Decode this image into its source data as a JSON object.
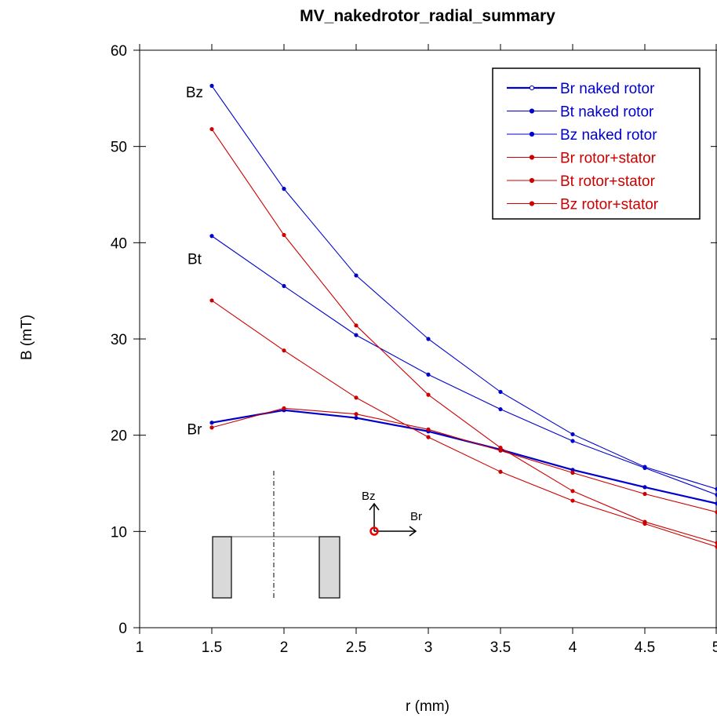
{
  "chart_data": {
    "type": "line",
    "title": "MV_nakedrotor_radial_summary",
    "xlabel": "r (mm)",
    "ylabel": "B (mT)",
    "xlim": [
      1,
      5
    ],
    "ylim": [
      0,
      60
    ],
    "xticks": [
      "1",
      "1.5",
      "2",
      "2.5",
      "3",
      "3.5",
      "4",
      "4.5",
      "5"
    ],
    "yticks": [
      "0",
      "10",
      "20",
      "30",
      "40",
      "50",
      "60"
    ],
    "grid": false,
    "legend_position": "top-right",
    "x": [
      1.5,
      2,
      2.5,
      3,
      3.5,
      4,
      4.5,
      5
    ],
    "series": [
      {
        "name": "Br naked rotor",
        "color": "#0000cc",
        "bold": true,
        "values": [
          21.3,
          22.6,
          21.8,
          20.4,
          18.5,
          16.4,
          14.6,
          12.9
        ]
      },
      {
        "name": "Bt naked rotor",
        "color": "#0000cc",
        "bold": false,
        "values": [
          40.7,
          35.5,
          30.4,
          26.3,
          22.7,
          19.4,
          16.6,
          13.8
        ]
      },
      {
        "name": "Bz naked rotor",
        "color": "#0000cc",
        "bold": false,
        "values": [
          56.3,
          45.6,
          36.6,
          30.0,
          24.5,
          20.1,
          16.7,
          14.4
        ]
      },
      {
        "name": "Br rotor+stator",
        "color": "#cc0000",
        "bold": false,
        "values": [
          20.8,
          22.8,
          22.2,
          20.6,
          18.4,
          16.1,
          13.9,
          12.0
        ]
      },
      {
        "name": "Bt rotor+stator",
        "color": "#cc0000",
        "bold": false,
        "values": [
          34.0,
          28.8,
          23.9,
          19.8,
          16.2,
          13.2,
          10.8,
          8.4
        ]
      },
      {
        "name": "Bz rotor+stator",
        "color": "#cc0000",
        "bold": false,
        "values": [
          51.8,
          40.8,
          31.4,
          24.2,
          18.7,
          14.2,
          11.0,
          8.8
        ]
      }
    ],
    "annotations": [
      {
        "text": "Bz",
        "x": 1.38,
        "y": 55.1
      },
      {
        "text": "Bt",
        "x": 1.38,
        "y": 37.8
      },
      {
        "text": "Br",
        "x": 1.38,
        "y": 20.1
      }
    ],
    "inset": {
      "axis_labels": [
        "Bz",
        "Br"
      ],
      "marker_color": "#ee0000",
      "fill_color": "#d9d9d9"
    }
  }
}
